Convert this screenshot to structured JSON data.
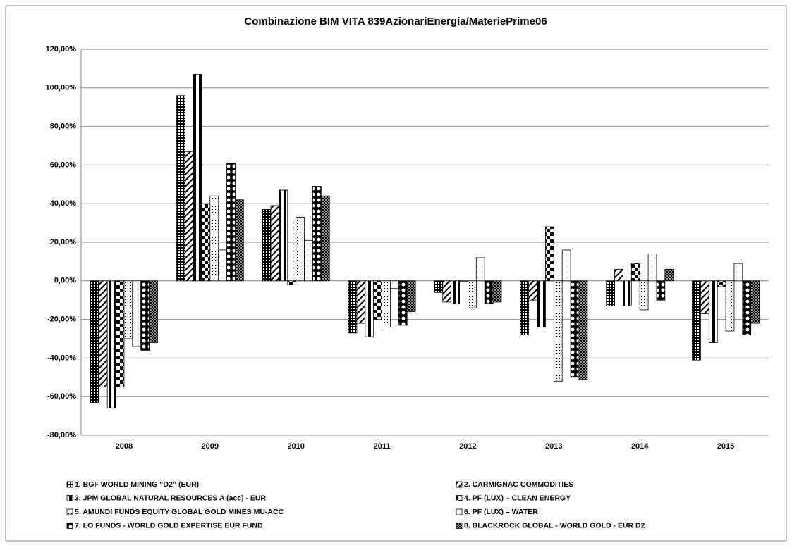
{
  "chart_data": {
    "type": "bar",
    "title": "Combinazione BIM VITA 839AzionariEnergia/MateriePrime06",
    "categories": [
      "2008",
      "2009",
      "2010",
      "2011",
      "2012",
      "2013",
      "2014",
      "2015"
    ],
    "series": [
      {
        "name": "1. BGF WORLD MINING “D2” (EUR)",
        "color": "#000000",
        "values": [
          -63,
          96,
          37,
          -27,
          -6,
          -28,
          -13,
          -41
        ]
      },
      {
        "name": "2. CARMIGNAC COMMODITIES",
        "color": "#000000",
        "values": [
          -55,
          67,
          39,
          -22,
          -11,
          -10,
          6,
          -17
        ]
      },
      {
        "name": "3. JPM GLOBAL NATURAL RESOURCES A (acc) - EUR",
        "color": "#000000",
        "values": [
          -66,
          107,
          47,
          -29,
          -12,
          -24,
          -13,
          -32
        ]
      },
      {
        "name": "4. PF (LUX) – CLEAN ENERGY",
        "color": "#000000",
        "values": [
          -55,
          40,
          -2,
          -20,
          0,
          28,
          9,
          -3
        ]
      },
      {
        "name": "5. AMUNDI FUNDS EQUITY GLOBAL GOLD MINES MU-ACC",
        "color": "#000000",
        "values": [
          -30,
          44,
          33,
          -24,
          -14,
          -52,
          -15,
          -26
        ]
      },
      {
        "name": "6. PF (LUX) – WATER",
        "color": "#000000",
        "values": [
          -34,
          16,
          21,
          -4,
          12,
          16,
          14,
          9
        ]
      },
      {
        "name": "7. LO FUNDS - WORLD GOLD EXPERTISE EUR FUND",
        "color": "#000000",
        "values": [
          -36,
          61,
          49,
          -23,
          -12,
          -50,
          -10,
          -28
        ]
      },
      {
        "name": "8. BLACKROCK GLOBAL - WORLD GOLD - EUR D2",
        "color": "#000000",
        "values": [
          -32,
          42,
          44,
          -16,
          -11,
          -51,
          6,
          -22
        ]
      }
    ],
    "ylim": [
      -80,
      120
    ],
    "yticks": [
      {
        "value": -80,
        "label": "-80,00%"
      },
      {
        "value": -60,
        "label": "-60,00%"
      },
      {
        "value": -40,
        "label": "-40,00%"
      },
      {
        "value": -20,
        "label": "-20,00%"
      },
      {
        "value": 0,
        "label": "0,00%"
      },
      {
        "value": 20,
        "label": "20,00%"
      },
      {
        "value": 40,
        "label": "40,00%"
      },
      {
        "value": 60,
        "label": "60,00%"
      },
      {
        "value": 80,
        "label": "80,00%"
      },
      {
        "value": 100,
        "label": "100,00%"
      },
      {
        "value": 120,
        "label": "120,00%"
      }
    ],
    "grid": true
  }
}
